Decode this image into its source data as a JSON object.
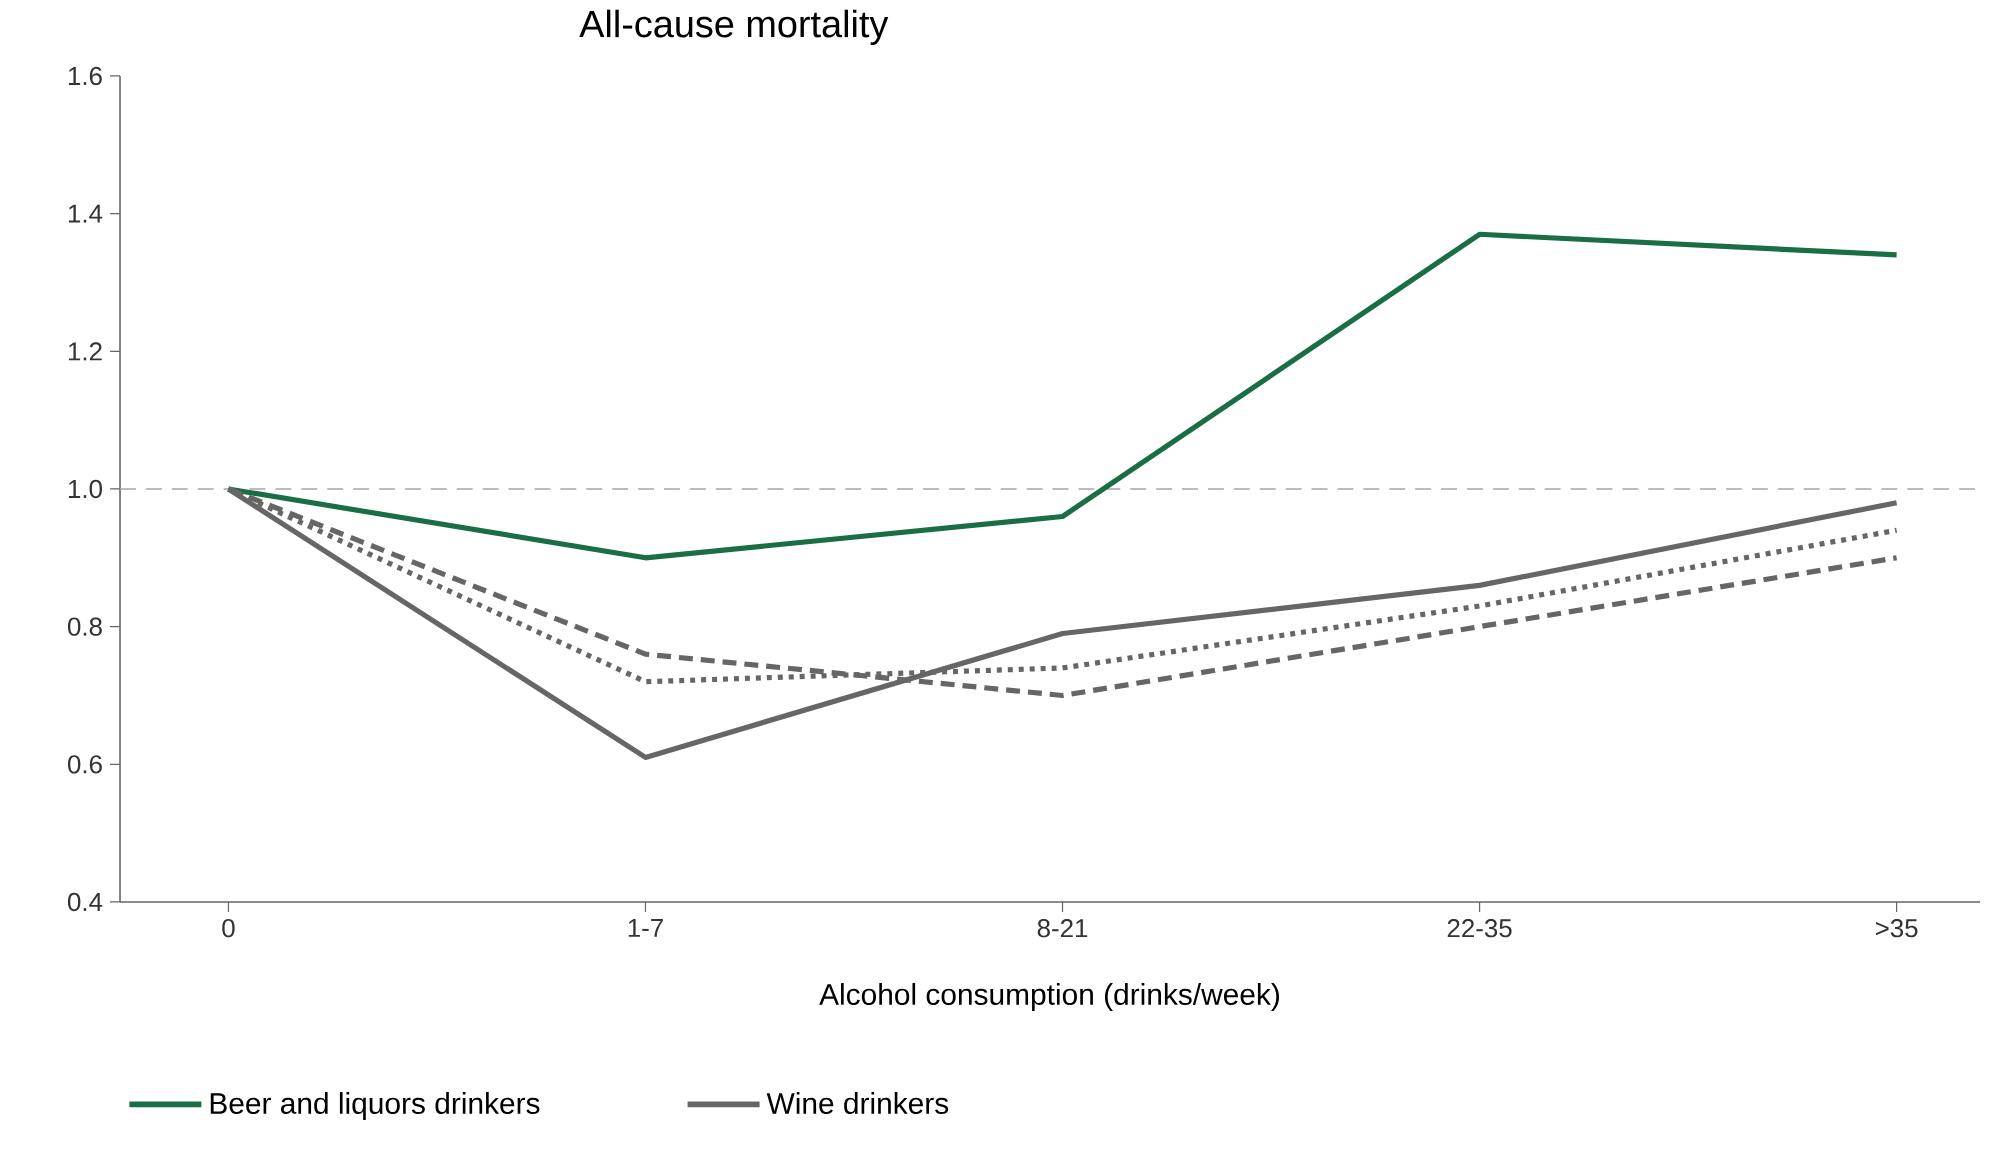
{
  "chart_data": {
    "type": "line",
    "title": "All-cause mortality",
    "xlabel": "Alcohol consumption (drinks/week)",
    "categories": [
      "0",
      "1-7",
      "8-21",
      "22-35",
      ">35"
    ],
    "ylim": [
      0.4,
      1.6
    ],
    "yticks": [
      0.4,
      0.6,
      0.8,
      {
        "value": 1.0,
        "label": "1.0"
      },
      1.2,
      1.4,
      1.6
    ],
    "series": [
      {
        "name": "Beer and liquors drinkers",
        "color": "#1a6e44",
        "line_style": "solid",
        "values": [
          1.0,
          0.9,
          0.96,
          1.37,
          1.34
        ]
      },
      {
        "name": "Wine drinkers",
        "color": "#666666",
        "line_style": "solid",
        "values": [
          1.0,
          0.61,
          0.79,
          0.86,
          0.98
        ]
      },
      {
        "color": "#666666",
        "line_style": "dashed",
        "values": [
          1.0,
          0.76,
          0.7,
          0.8,
          0.9
        ]
      },
      {
        "color": "#666666",
        "line_style": "dotted",
        "values": [
          1.0,
          0.72,
          0.74,
          0.83,
          0.94
        ]
      }
    ],
    "ref_lines": [
      {
        "axis": "y",
        "value": 1.0,
        "color": "#a6a6a6",
        "line_style": "dashed"
      }
    ],
    "legend": "bottom",
    "grid": false,
    "marker": "none"
  }
}
